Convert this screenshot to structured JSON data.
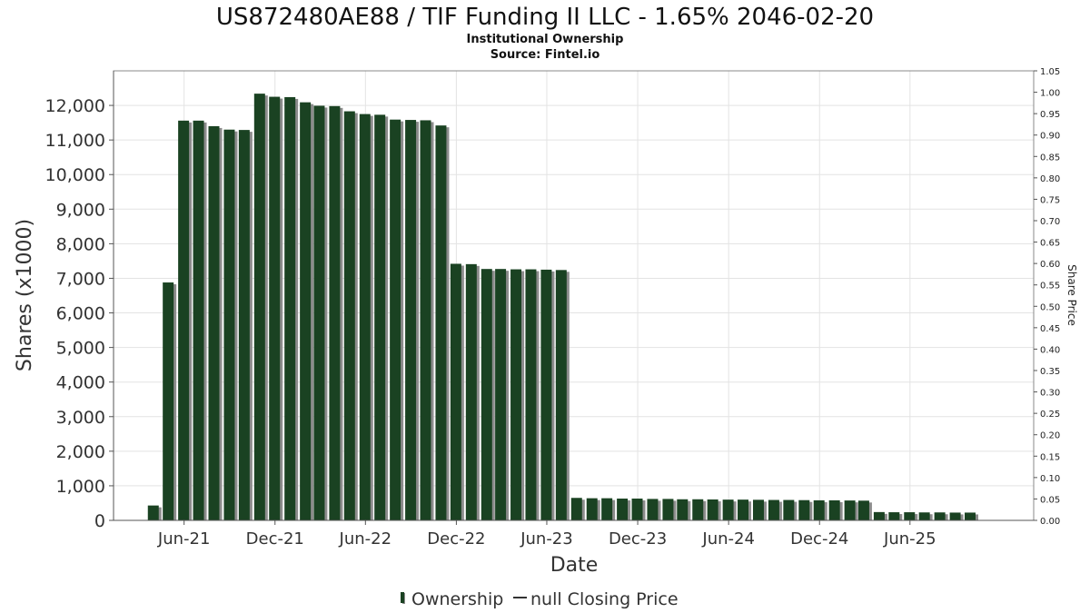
{
  "chart_data": {
    "type": "bar",
    "title": "US872480AE88 / TIF Funding II LLC - 1.65% 2046-02-20",
    "subtitle_lines": [
      "Institutional Ownership",
      "Source: Fintel.io"
    ],
    "xlabel": "Date",
    "ylabel": "Shares (x1000)",
    "y2label": "Share Price",
    "ylim": [
      0,
      13000
    ],
    "y2lim": [
      0,
      1.05
    ],
    "yticks": [
      0,
      1000,
      2000,
      3000,
      4000,
      5000,
      6000,
      7000,
      8000,
      9000,
      10000,
      11000,
      12000
    ],
    "ytick_labels": [
      "0",
      "1,000",
      "2,000",
      "3,000",
      "4,000",
      "5,000",
      "6,000",
      "7,000",
      "8,000",
      "9,000",
      "10,000",
      "11,000",
      "12,000"
    ],
    "y2ticks": [
      0,
      0.05,
      0.1,
      0.15,
      0.2,
      0.25,
      0.3,
      0.35,
      0.4,
      0.45,
      0.5,
      0.55,
      0.6,
      0.65,
      0.7,
      0.75,
      0.8,
      0.85,
      0.9,
      0.95,
      1.0,
      1.05
    ],
    "y2tick_labels": [
      "0.00",
      "0.05",
      "0.10",
      "0.15",
      "0.20",
      "0.25",
      "0.30",
      "0.35",
      "0.40",
      "0.45",
      "0.50",
      "0.55",
      "0.60",
      "0.65",
      "0.70",
      "0.75",
      "0.80",
      "0.85",
      "0.90",
      "0.95",
      "1.00",
      "1.05"
    ],
    "xlim": [
      "2021-01-10",
      "2026-02-05"
    ],
    "xticks": [
      {
        "date": "2021-06-01",
        "label": "Jun-21"
      },
      {
        "date": "2021-12-01",
        "label": "Dec-21"
      },
      {
        "date": "2022-06-01",
        "label": "Jun-22"
      },
      {
        "date": "2022-12-01",
        "label": "Dec-22"
      },
      {
        "date": "2023-06-01",
        "label": "Jun-23"
      },
      {
        "date": "2023-12-01",
        "label": "Dec-23"
      },
      {
        "date": "2024-06-01",
        "label": "Jun-24"
      },
      {
        "date": "2024-12-01",
        "label": "Dec-24"
      },
      {
        "date": "2025-06-01",
        "label": "Jun-25"
      }
    ],
    "grid": true,
    "legend_position": "bottom-center",
    "bar_color": "#1a4222",
    "shadow_color": "#8c8c8c",
    "series": [
      {
        "name": "Ownership",
        "x": [
          "2021-03-31",
          "2021-04-30",
          "2021-05-31",
          "2021-06-30",
          "2021-07-31",
          "2021-08-31",
          "2021-09-30",
          "2021-10-31",
          "2021-11-30",
          "2021-12-31",
          "2022-01-31",
          "2022-02-28",
          "2022-03-31",
          "2022-04-30",
          "2022-05-31",
          "2022-06-30",
          "2022-07-31",
          "2022-08-31",
          "2022-09-30",
          "2022-10-31",
          "2022-11-30",
          "2022-12-31",
          "2023-01-31",
          "2023-02-28",
          "2023-03-31",
          "2023-04-30",
          "2023-05-31",
          "2023-06-30",
          "2023-07-31",
          "2023-08-31",
          "2023-09-30",
          "2023-10-31",
          "2023-11-30",
          "2023-12-31",
          "2024-01-31",
          "2024-02-29",
          "2024-03-31",
          "2024-04-30",
          "2024-05-31",
          "2024-06-30",
          "2024-07-31",
          "2024-08-31",
          "2024-09-30",
          "2024-10-31",
          "2024-11-30",
          "2024-12-31",
          "2025-01-31",
          "2025-02-28",
          "2025-03-31",
          "2025-04-30",
          "2025-05-31",
          "2025-06-30",
          "2025-07-31",
          "2025-08-31",
          "2025-09-30"
        ],
        "values": [
          430,
          6880,
          11560,
          11560,
          11400,
          11300,
          11290,
          12340,
          12250,
          12240,
          12090,
          11990,
          11980,
          11830,
          11750,
          11730,
          11590,
          11580,
          11570,
          11420,
          7420,
          7410,
          7270,
          7270,
          7260,
          7260,
          7250,
          7240,
          650,
          640,
          640,
          630,
          630,
          620,
          620,
          610,
          610,
          605,
          600,
          600,
          595,
          590,
          590,
          585,
          580,
          580,
          575,
          570,
          240,
          235,
          235,
          230,
          230,
          225,
          225
        ]
      }
    ],
    "legend": [
      {
        "label": "Ownership",
        "marker": "bar"
      },
      {
        "label": "null Closing Price",
        "marker": "line"
      }
    ]
  }
}
